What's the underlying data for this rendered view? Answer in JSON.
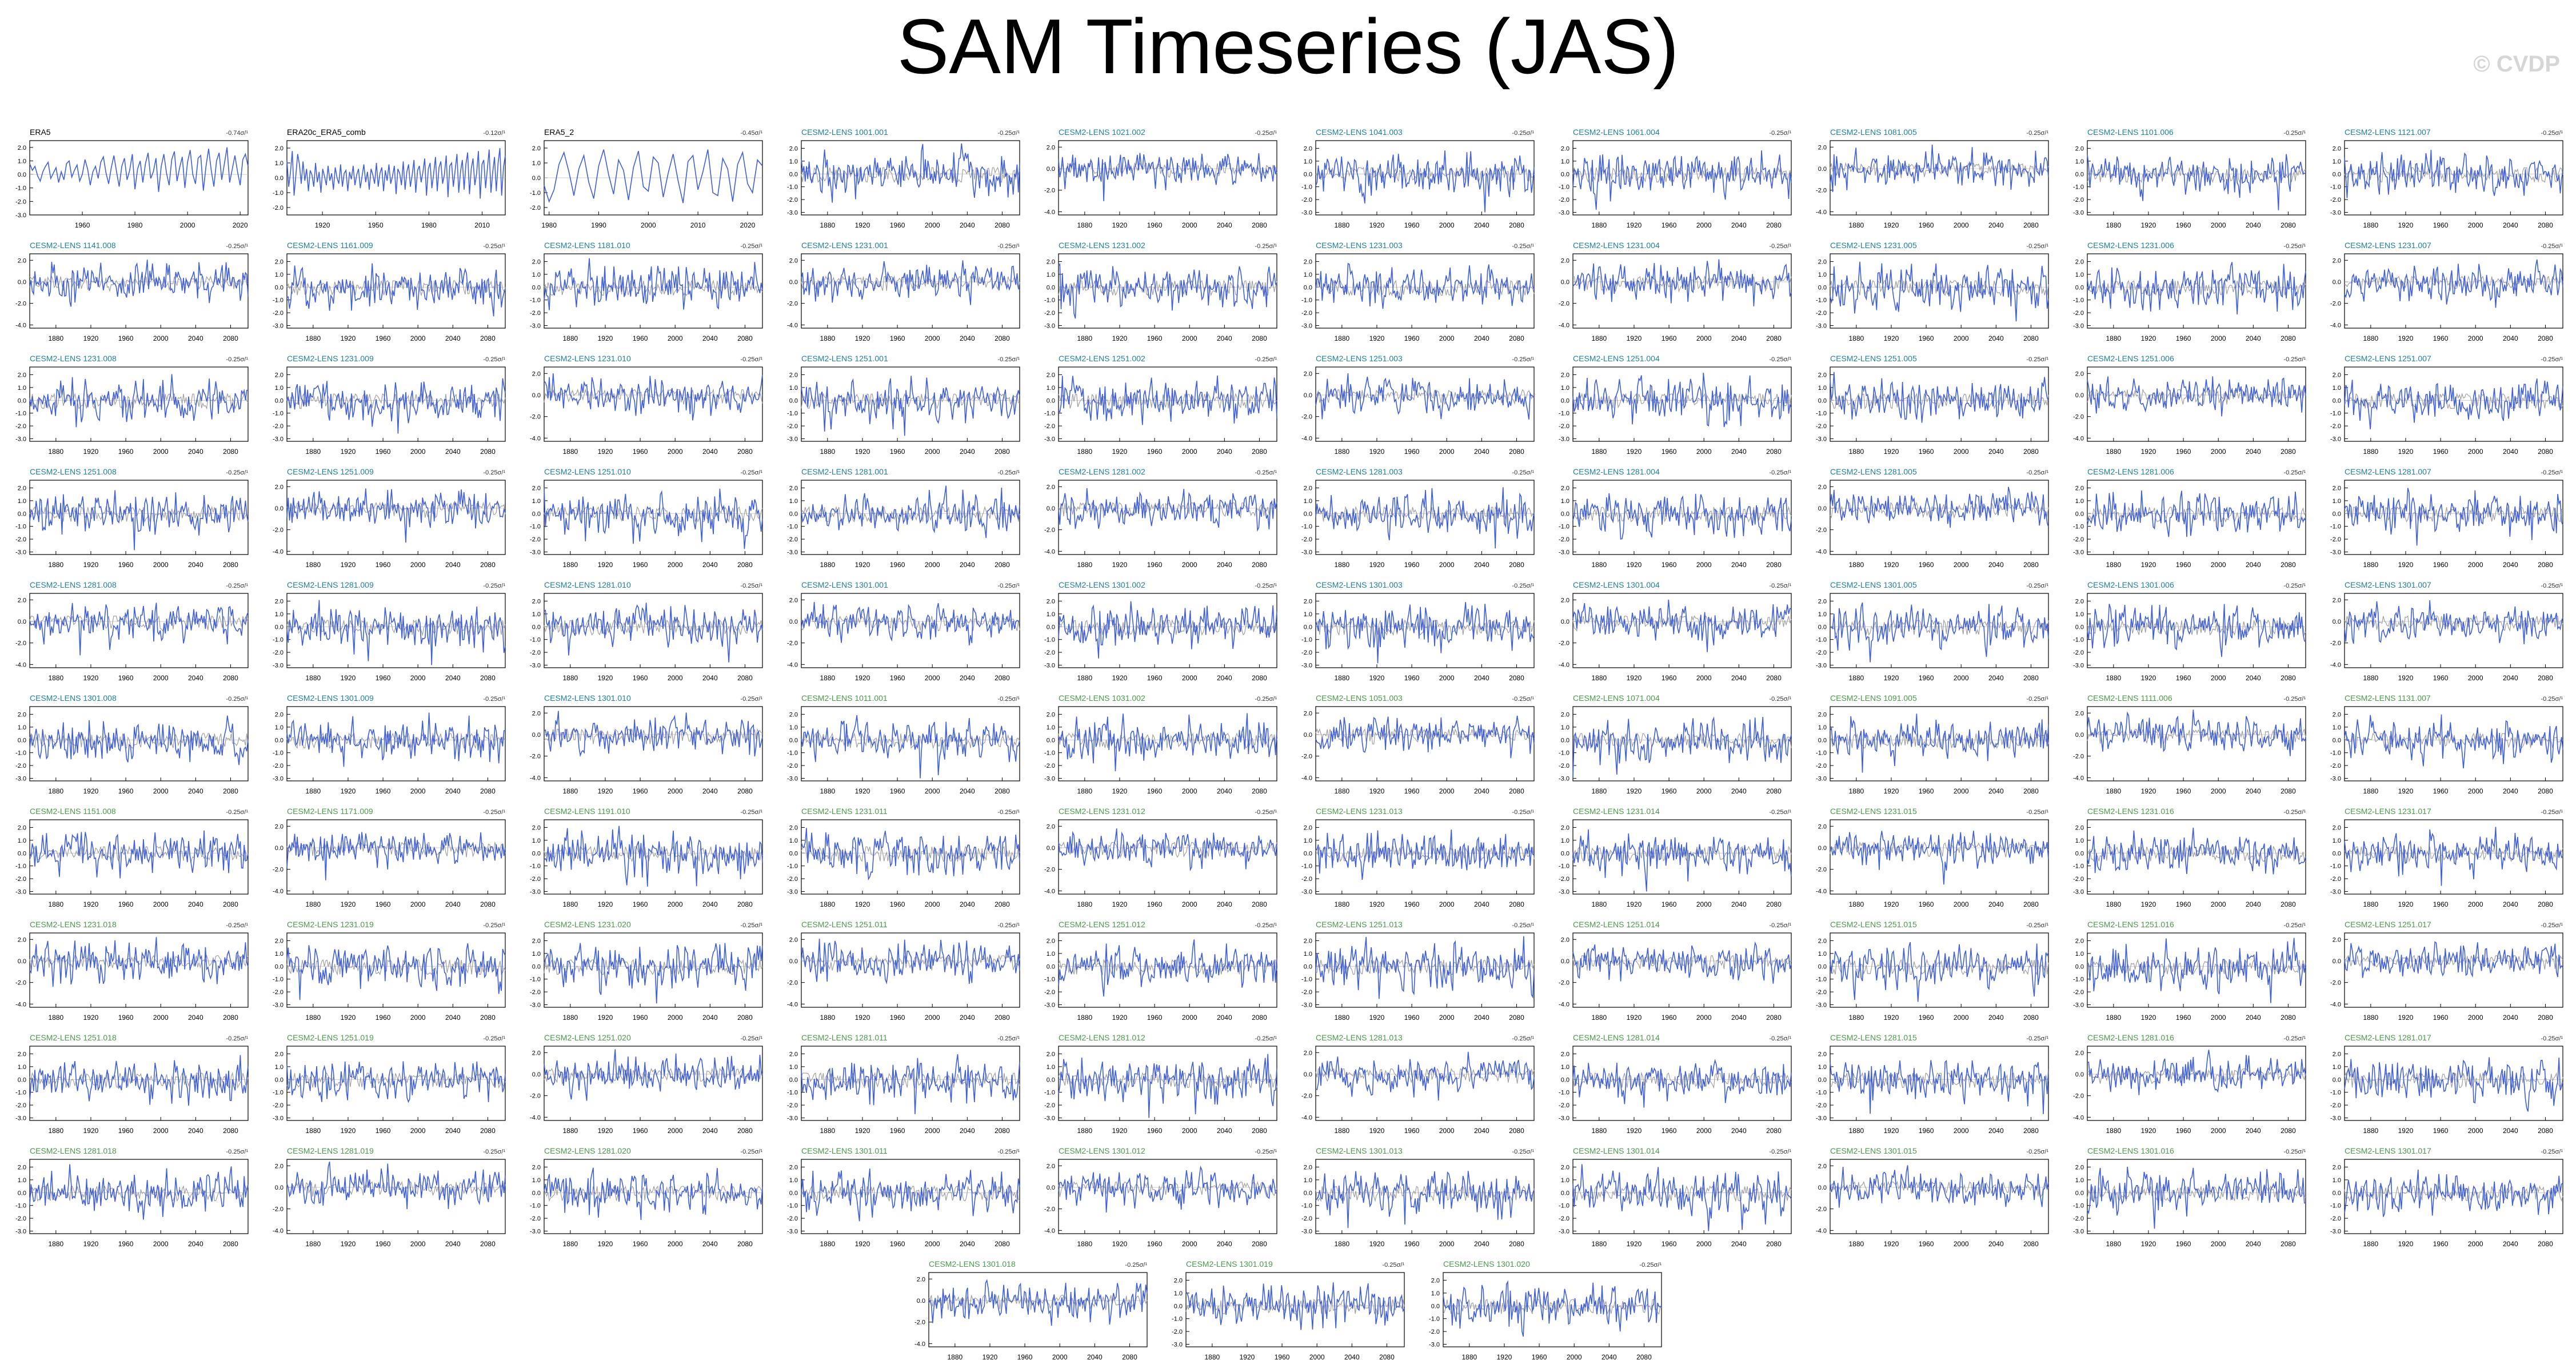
{
  "title": "SAM Timeseries (JAS)",
  "credit": "© CVDP",
  "colors": {
    "line": "#3f5fdc",
    "ensemble_mean": "#a0a0a0",
    "obs_title": "#000000",
    "cesm_1001": "#1f80a0",
    "cesm_1011": "#4a9a4a"
  },
  "chart_data": [
    {
      "type": "line",
      "title": "ERA5",
      "trend": "-0.74σ/¹",
      "xticks": [
        "1960",
        "1980",
        "2000",
        "2020"
      ],
      "yticks": [
        "2.0",
        "1.0",
        "0.0",
        "-1.0",
        "-2.0",
        "-3.0"
      ],
      "ylim": [
        -3,
        2.5
      ],
      "xlim": [
        1940,
        2023
      ],
      "series": [
        {
          "name": "ERA5",
          "values": [
            0.8,
            0.3,
            0.6,
            -0.1,
            -0.5,
            0.2,
            0.6,
            0.9,
            -0.3,
            0.1,
            0.5,
            -0.6,
            0.2,
            -0.4,
            0.8,
            1.0,
            -0.2,
            0.3,
            0.7,
            -0.5,
            0.0,
            1.1,
            0.4,
            -0.8,
            0.2,
            0.6,
            -0.3,
            0.9,
            1.3,
            0.1,
            -0.7,
            0.5,
            1.4,
            0.2,
            -0.9,
            0.6,
            1.2,
            -0.4,
            0.3,
            1.5,
            -1.1,
            0.4,
            1.0,
            -0.6,
            0.8,
            1.6,
            -0.3,
            0.2,
            1.2,
            -1.3,
            0.6,
            1.5,
            0.1,
            -0.8,
            1.1,
            1.7,
            -0.5,
            0.5,
            1.3,
            -1.0,
            0.9,
            1.8,
            0.0,
            -0.7,
            1.2,
            1.4,
            -1.2,
            0.6,
            1.9,
            0.3,
            -0.9,
            1.0,
            1.6,
            -0.4,
            0.8,
            2.0,
            -0.6,
            0.4,
            1.4,
            0.2,
            -0.8,
            1.1,
            1.5,
            0.6
          ]
        }
      ]
    },
    {
      "type": "line",
      "title": "ERA20c_ERA5_comb",
      "trend": "-0.12σ/¹",
      "xticks": [
        "1920",
        "1950",
        "1980",
        "2010"
      ],
      "yticks": [
        "2.0",
        "1.0",
        "0.0",
        "-1.0",
        "-2.0"
      ],
      "ylim": [
        -2.5,
        2.5
      ],
      "xlim": [
        1900,
        2023
      ],
      "series": [
        {
          "name": "ERA20c_ERA5_comb",
          "values": [
            1.2,
            -0.6,
            0.4,
            1.8,
            -1.2,
            0.2,
            1.6,
            0.9,
            -0.4,
            1.1,
            -0.2,
            0.6,
            -0.9,
            0.5,
            0.2,
            -0.6,
            1.0,
            -0.3,
            0.4,
            -1.0,
            0.6,
            0.1,
            -0.5,
            0.8,
            -0.2,
            0.3,
            -0.8,
            0.7,
            0.0,
            -0.4,
            0.9,
            -0.6,
            0.3,
            0.5,
            -0.9,
            0.4,
            -0.1,
            0.8,
            -0.5,
            0.2,
            0.6,
            -0.7,
            0.1,
            0.9,
            -0.3,
            0.4,
            -0.8,
            0.6,
            0.2,
            -0.4,
            1.0,
            -0.6,
            0.3,
            0.7,
            -0.9,
            0.5,
            -0.2,
            0.9,
            -0.4,
            0.1,
            0.8,
            -1.1,
            0.6,
            0.3,
            -0.5,
            1.1,
            -0.8,
            0.4,
            0.9,
            -0.6,
            0.2,
            1.2,
            -1.0,
            0.5,
            0.8,
            -0.3,
            0.4,
            1.3,
            -1.2,
            0.6,
            1.0,
            -0.7,
            0.3,
            1.4,
            -0.9,
            0.7,
            1.1,
            -0.4,
            0.2,
            1.5,
            -1.3,
            0.8,
            1.0,
            -0.6,
            0.5,
            1.6,
            -1.0,
            0.4,
            1.2,
            -0.8,
            0.9,
            1.7,
            -1.1,
            0.6,
            1.3,
            -0.5,
            0.3,
            1.8,
            -1.4,
            0.9,
            1.2,
            -0.7,
            0.6,
            1.9,
            -1.0,
            0.4,
            1.4,
            -0.9,
            1.0,
            2.0,
            -1.2,
            0.7,
            1.5
          ]
        }
      ]
    },
    {
      "type": "line",
      "title": "ERA5_2",
      "trend": "-0.45σ/¹",
      "xticks": [
        "1980",
        "1990",
        "2000",
        "2010",
        "2020"
      ],
      "yticks": [
        "2.0",
        "1.0",
        "0.0",
        "-1.0",
        "-2.0"
      ],
      "ylim": [
        -2.5,
        2.5
      ],
      "xlim": [
        1979,
        2023
      ],
      "series": [
        {
          "name": "ERA5_2",
          "values": [
            -0.5,
            -1.6,
            -0.8,
            0.9,
            1.7,
            0.4,
            -1.2,
            0.6,
            1.5,
            -0.3,
            -1.4,
            0.8,
            1.9,
            0.2,
            -1.1,
            1.2,
            0.5,
            -1.5,
            0.7,
            1.8,
            -0.6,
            -0.9,
            1.4,
            1.0,
            -1.3,
            0.3,
            1.6,
            -0.2,
            -1.7,
            1.1,
            1.5,
            -0.8,
            0.4,
            1.9,
            -1.0,
            -1.2,
            1.3,
            0.6,
            -1.6,
            0.9,
            1.7,
            -0.4,
            -1.0,
            1.2,
            0.8
          ]
        }
      ]
    }
  ],
  "cesm_grid": {
    "titles": [
      "CESM2-LENS 1001.001",
      "CESM2-LENS 1021.002",
      "CESM2-LENS 1041.003",
      "CESM2-LENS 1061.004",
      "CESM2-LENS 1081.005",
      "CESM2-LENS 1101.006",
      "CESM2-LENS 1121.007",
      "CESM2-LENS 1141.008",
      "CESM2-LENS 1161.009",
      "CESM2-LENS 1181.010",
      "CESM2-LENS 1231.001",
      "CESM2-LENS 1231.002",
      "CESM2-LENS 1231.003",
      "CESM2-LENS 1231.004",
      "CESM2-LENS 1231.005",
      "CESM2-LENS 1231.006",
      "CESM2-LENS 1231.007",
      "CESM2-LENS 1231.008",
      "CESM2-LENS 1231.009",
      "CESM2-LENS 1231.010",
      "CESM2-LENS 1251.001",
      "CESM2-LENS 1251.002",
      "CESM2-LENS 1251.003",
      "CESM2-LENS 1251.004",
      "CESM2-LENS 1251.005",
      "CESM2-LENS 1251.006",
      "CESM2-LENS 1251.007",
      "CESM2-LENS 1251.008",
      "CESM2-LENS 1251.009",
      "CESM2-LENS 1251.010",
      "CESM2-LENS 1281.001",
      "CESM2-LENS 1281.002",
      "CESM2-LENS 1281.003",
      "CESM2-LENS 1281.004",
      "CESM2-LENS 1281.005",
      "CESM2-LENS 1281.006",
      "CESM2-LENS 1281.007",
      "CESM2-LENS 1281.008",
      "CESM2-LENS 1281.009",
      "CESM2-LENS 1281.010",
      "CESM2-LENS 1301.001",
      "CESM2-LENS 1301.002",
      "CESM2-LENS 1301.003",
      "CESM2-LENS 1301.004",
      "CESM2-LENS 1301.005",
      "CESM2-LENS 1301.006",
      "CESM2-LENS 1301.007",
      "CESM2-LENS 1301.008",
      "CESM2-LENS 1301.009",
      "CESM2-LENS 1301.010",
      "CESM2-LENS 1011.001",
      "CESM2-LENS 1031.002",
      "CESM2-LENS 1051.003",
      "CESM2-LENS 1071.004",
      "CESM2-LENS 1091.005",
      "CESM2-LENS 1111.006",
      "CESM2-LENS 1131.007",
      "CESM2-LENS 1151.008",
      "CESM2-LENS 1171.009",
      "CESM2-LENS 1191.010",
      "CESM2-LENS 1231.011",
      "CESM2-LENS 1231.012",
      "CESM2-LENS 1231.013",
      "CESM2-LENS 1231.014",
      "CESM2-LENS 1231.015",
      "CESM2-LENS 1231.016",
      "CESM2-LENS 1231.017",
      "CESM2-LENS 1231.018",
      "CESM2-LENS 1231.019",
      "CESM2-LENS 1231.020",
      "CESM2-LENS 1251.011",
      "CESM2-LENS 1251.012",
      "CESM2-LENS 1251.013",
      "CESM2-LENS 1251.014",
      "CESM2-LENS 1251.015",
      "CESM2-LENS 1251.016",
      "CESM2-LENS 1251.017",
      "CESM2-LENS 1251.018",
      "CESM2-LENS 1251.019",
      "CESM2-LENS 1251.020",
      "CESM2-LENS 1281.011",
      "CESM2-LENS 1281.012",
      "CESM2-LENS 1281.013",
      "CESM2-LENS 1281.014",
      "CESM2-LENS 1281.015",
      "CESM2-LENS 1281.016",
      "CESM2-LENS 1281.017",
      "CESM2-LENS 1281.018",
      "CESM2-LENS 1281.019",
      "CESM2-LENS 1281.020",
      "CESM2-LENS 1301.011",
      "CESM2-LENS 1301.012",
      "CESM2-LENS 1301.013",
      "CESM2-LENS 1301.014",
      "CESM2-LENS 1301.015",
      "CESM2-LENS 1301.016",
      "CESM2-LENS 1301.017",
      "CESM2-LENS 1301.018",
      "CESM2-LENS 1301.019",
      "CESM2-LENS 1301.020"
    ],
    "trend_label": "-0.25σ/¹",
    "xticks": [
      "1880",
      "1920",
      "1960",
      "2000",
      "2040",
      "2080"
    ],
    "xlim": [
      1850,
      2100
    ],
    "yticks_a": [
      "2.0",
      "1.0",
      "0.0",
      "-1.0",
      "-2.0",
      "-3.0"
    ],
    "ylim_a": [
      -3.2,
      2.6
    ],
    "yticks_b": [
      "2.0",
      "0.0",
      "-2.0",
      "-4.0"
    ],
    "ylim_b": [
      -4.3,
      2.6
    ]
  }
}
